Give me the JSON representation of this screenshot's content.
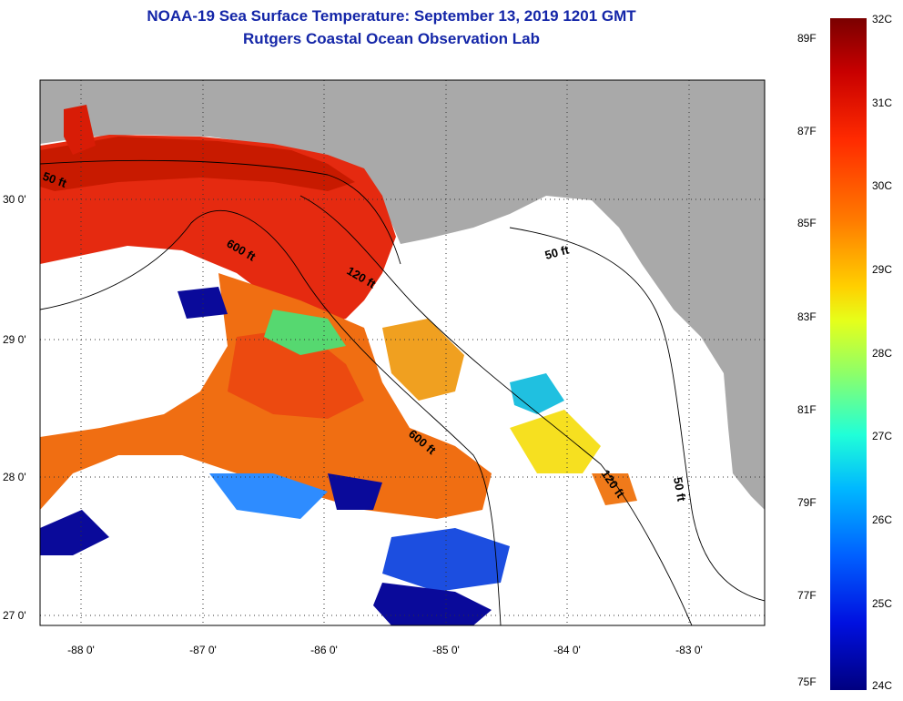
{
  "title_line1": "NOAA-19 Sea Surface Temperature:  September 13, 2019 1201 GMT",
  "title_line2": "Rutgers Coastal Ocean Observation Lab",
  "lat_labels": [
    "30 0'",
    "29 0'",
    "28 0'",
    "27 0'"
  ],
  "lon_labels": [
    "-88 0'",
    "-87 0'",
    "-86 0'",
    "-85 0'",
    "-84 0'",
    "-83 0'"
  ],
  "depth_labels": [
    "50 ft",
    "600 ft",
    "120 ft",
    "50 ft",
    "600 ft",
    "120 ft",
    "50 ft"
  ],
  "colorbar": {
    "fahrenheit": [
      "89F",
      "87F",
      "85F",
      "83F",
      "81F",
      "79F",
      "77F",
      "75F"
    ],
    "celsius": [
      "32C",
      "31C",
      "30C",
      "29C",
      "28C",
      "27C",
      "26C",
      "25C",
      "24C"
    ]
  },
  "colors": {
    "land": "#a9a9a9",
    "title": "#1426a8",
    "warm": "#e8280c",
    "hot": "#c81400",
    "cool": "#1c4ee0",
    "cold": "#0a0a9a"
  }
}
